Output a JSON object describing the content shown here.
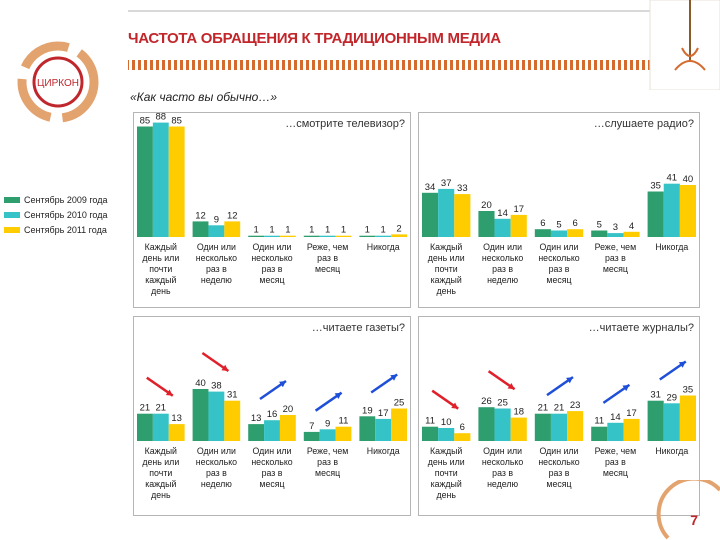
{
  "header": {
    "title": "ЧАСТОТА ОБРАЩЕНИЯ К ТРАДИЦИОННЫМ МЕДИА",
    "logo_text": "ЦИРКОН",
    "question": "«Как часто вы обычно…»",
    "page_number": "7"
  },
  "colors": {
    "s2009": "#2f9e6e",
    "s2010": "#36c3c7",
    "s2011": "#ffcc00",
    "accent": "#c0272d",
    "arrow_down": "#e0202a",
    "arrow_up": "#1f4fd8"
  },
  "legend": [
    "Сентябрь 2009 года",
    "Сентябрь 2010 года",
    "Сентябрь 2011 года"
  ],
  "chart_data": [
    {
      "type": "bar",
      "title": "…смотрите телевизор?",
      "categories": [
        [
          "Каждый",
          "день или",
          "почти",
          "каждый",
          "день"
        ],
        [
          "Один или",
          "несколько",
          "раз в",
          "неделю"
        ],
        [
          "Один или",
          "несколько",
          "раз в",
          "месяц"
        ],
        [
          "Реже, чем",
          "раз в",
          "месяц"
        ],
        [
          "Никогда"
        ]
      ],
      "series": [
        {
          "name": "Сентябрь 2009 года",
          "values": [
            85,
            12,
            1,
            1,
            1
          ]
        },
        {
          "name": "Сентябрь 2010 года",
          "values": [
            88,
            9,
            1,
            1,
            1
          ]
        },
        {
          "name": "Сентябрь 2011 года",
          "values": [
            85,
            12,
            1,
            1,
            2
          ]
        }
      ],
      "ylim": [
        0,
        90
      ],
      "arrows": []
    },
    {
      "type": "bar",
      "title": "…слушаете радио?",
      "categories": [
        [
          "Каждый",
          "день или",
          "почти",
          "каждый",
          "день"
        ],
        [
          "Один или",
          "несколько",
          "раз в",
          "неделю"
        ],
        [
          "Один или",
          "несколько",
          "раз в",
          "месяц"
        ],
        [
          "Реже, чем",
          "раз в",
          "месяц"
        ],
        [
          "Никогда"
        ]
      ],
      "series": [
        {
          "name": "Сентябрь 2009 года",
          "values": [
            34,
            20,
            6,
            5,
            35
          ]
        },
        {
          "name": "Сентябрь 2010 года",
          "values": [
            37,
            14,
            5,
            3,
            41
          ]
        },
        {
          "name": "Сентябрь 2011 года",
          "values": [
            33,
            17,
            6,
            4,
            40
          ]
        }
      ],
      "ylim": [
        0,
        90
      ],
      "arrows": []
    },
    {
      "type": "bar",
      "title": "…читаете газеты?",
      "categories": [
        [
          "Каждый",
          "день или",
          "почти",
          "каждый",
          "день"
        ],
        [
          "Один или",
          "несколько",
          "раз в",
          "неделю"
        ],
        [
          "Один или",
          "несколько",
          "раз в",
          "месяц"
        ],
        [
          "Реже, чем",
          "раз в",
          "месяц"
        ],
        [
          "Никогда"
        ]
      ],
      "series": [
        {
          "name": "Сентябрь 2009 года",
          "values": [
            21,
            40,
            13,
            7,
            19
          ]
        },
        {
          "name": "Сентябрь 2010 года",
          "values": [
            21,
            38,
            16,
            9,
            17
          ]
        },
        {
          "name": "Сентябрь 2011 года",
          "values": [
            13,
            31,
            20,
            11,
            25
          ]
        }
      ],
      "ylim": [
        0,
        90
      ],
      "arrows": [
        "down",
        "down",
        "up",
        "up",
        "up"
      ]
    },
    {
      "type": "bar",
      "title": "…читаете журналы?",
      "categories": [
        [
          "Каждый",
          "день или",
          "почти",
          "каждый",
          "день"
        ],
        [
          "Один или",
          "несколько",
          "раз в",
          "неделю"
        ],
        [
          "Один или",
          "несколько",
          "раз в",
          "месяц"
        ],
        [
          "Реже, чем",
          "раз в",
          "месяц"
        ],
        [
          "Никогда"
        ]
      ],
      "series": [
        {
          "name": "Сентябрь 2009 года",
          "values": [
            11,
            26,
            21,
            11,
            31
          ]
        },
        {
          "name": "Сентябрь 2010 года",
          "values": [
            10,
            25,
            21,
            14,
            29
          ]
        },
        {
          "name": "Сентябрь 2011 года",
          "values": [
            6,
            18,
            23,
            17,
            35
          ]
        }
      ],
      "ylim": [
        0,
        90
      ],
      "arrows": [
        "down",
        "down",
        "up",
        "up",
        "up"
      ]
    }
  ]
}
